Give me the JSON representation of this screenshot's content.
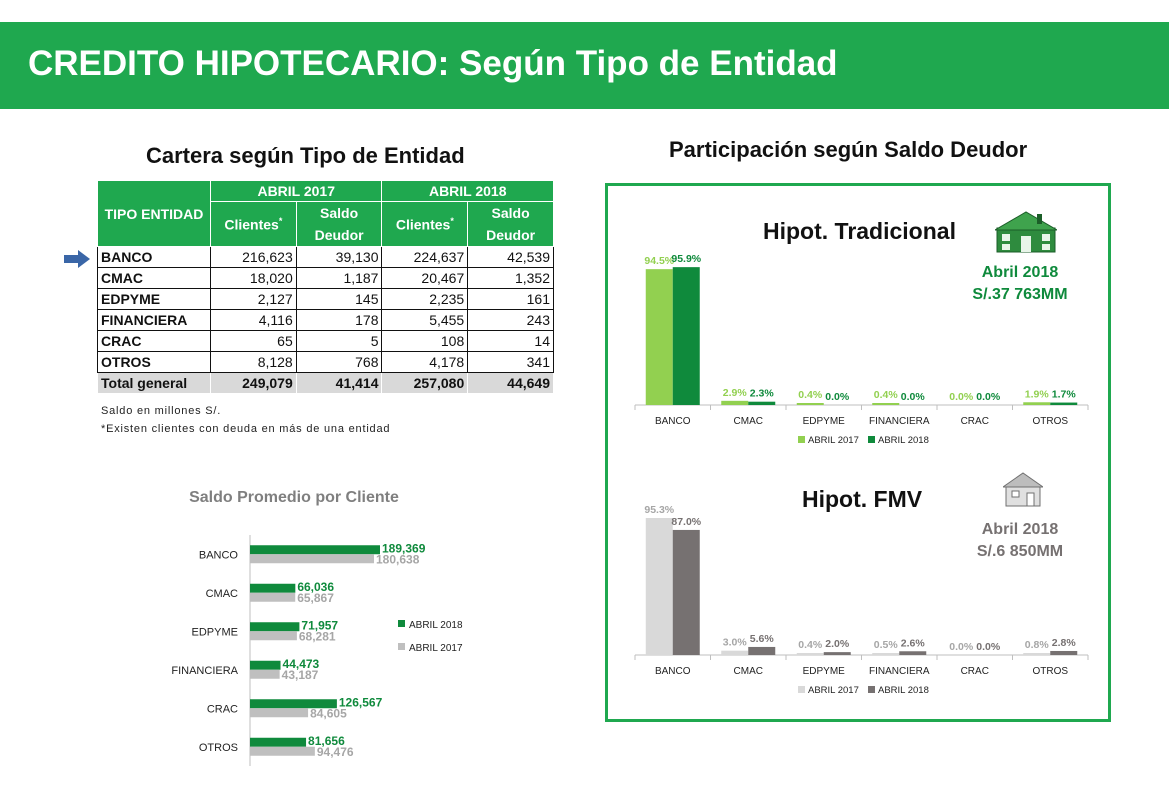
{
  "header": {
    "title": "CREDITO HIPOTECARIO: Según Tipo de Entidad"
  },
  "table": {
    "title": "Cartera según Tipo de Entidad",
    "col_tipo": "TIPO ENTIDAD",
    "col_abril2017": "ABRIL 2017",
    "col_abril2018": "ABRIL 2018",
    "col_clientes": "Clientes",
    "col_saldo": "Saldo Deudor",
    "asterisk": "*",
    "rows": [
      {
        "entidad": "BANCO",
        "c2017": "216,623",
        "s2017": "39,130",
        "c2018": "224,637",
        "s2018": "42,539"
      },
      {
        "entidad": "CMAC",
        "c2017": "18,020",
        "s2017": "1,187",
        "c2018": "20,467",
        "s2018": "1,352"
      },
      {
        "entidad": "EDPYME",
        "c2017": "2,127",
        "s2017": "145",
        "c2018": "2,235",
        "s2018": "161"
      },
      {
        "entidad": "FINANCIERA",
        "c2017": "4,116",
        "s2017": "178",
        "c2018": "5,455",
        "s2018": "243"
      },
      {
        "entidad": "CRAC",
        "c2017": "65",
        "s2017": "5",
        "c2018": "108",
        "s2018": "14"
      },
      {
        "entidad": "OTROS",
        "c2017": "8,128",
        "s2017": "768",
        "c2018": "4,178",
        "s2018": "341"
      }
    ],
    "total": {
      "entidad": "Total general",
      "c2017": "249,079",
      "s2017": "41,414",
      "c2018": "257,080",
      "s2018": "44,649"
    },
    "note1": "Saldo en millones S/.",
    "note2": "*Existen clientes con deuda en más de una entidad"
  },
  "colors": {
    "brand_green": "#1fa84f",
    "dark_green": "#0f8a3c",
    "light_green": "#92d050",
    "light_gray": "#d9d9d9",
    "mid_gray": "#bfbfbf",
    "dark_gray": "#767171"
  },
  "chart_data": [
    {
      "id": "saldo-promedio",
      "type": "bar",
      "orientation": "horizontal",
      "title": "Saldo Promedio por Cliente",
      "categories": [
        "BANCO",
        "CMAC",
        "EDPYME",
        "FINANCIERA",
        "CRAC",
        "OTROS"
      ],
      "series": [
        {
          "name": "ABRIL 2018",
          "values": [
            189369,
            66036,
            71957,
            44473,
            126567,
            81656
          ],
          "labels": [
            "189,369",
            "66,036",
            "71,957",
            "44,473",
            "126,567",
            "81,656"
          ],
          "color": "#0f8a3c"
        },
        {
          "name": "ABRIL 2017",
          "values": [
            180638,
            65867,
            68281,
            43187,
            84605,
            94476
          ],
          "labels": [
            "180,638",
            "65,867",
            "68,281",
            "43,187",
            "84,605",
            "94,476"
          ],
          "color": "#bfbfbf"
        }
      ],
      "legend": "right"
    },
    {
      "id": "hipot-tradicional",
      "type": "bar",
      "title": "Participación según Saldo Deudor",
      "subtitle": "Hipot. Tradicional",
      "info_line1": "Abril 2018",
      "info_line2": "S/.37 763MM",
      "icon": "house-icon",
      "categories": [
        "BANCO",
        "CMAC",
        "EDPYME",
        "FINANCIERA",
        "CRAC",
        "OTROS"
      ],
      "series": [
        {
          "name": "ABRIL 2017",
          "values": [
            94.5,
            2.9,
            0.4,
            0.4,
            0.0,
            1.9
          ],
          "labels": [
            "94.5%",
            "2.9%",
            "0.4%",
            "0.4%",
            "0.0%",
            "1.9%"
          ],
          "color": "#92d050"
        },
        {
          "name": "ABRIL 2018",
          "values": [
            95.9,
            2.3,
            0.0,
            0.0,
            0.0,
            1.7
          ],
          "labels": [
            "95.9%",
            "2.3%",
            "0.0%",
            "0.0%",
            "0.0%",
            "1.7%"
          ],
          "color": "#0f8a3c"
        }
      ],
      "legend": "bottom"
    },
    {
      "id": "hipot-fmv",
      "type": "bar",
      "subtitle": "Hipot. FMV",
      "info_line1": "Abril 2018",
      "info_line2": "S/.6 850MM",
      "icon": "small-house-icon",
      "categories": [
        "BANCO",
        "CMAC",
        "EDPYME",
        "FINANCIERA",
        "CRAC",
        "OTROS"
      ],
      "series": [
        {
          "name": "ABRIL 2017",
          "values": [
            95.3,
            3.0,
            0.4,
            0.5,
            0.0,
            0.8
          ],
          "labels": [
            "95.3%",
            "3.0%",
            "0.4%",
            "0.5%",
            "0.0%",
            "0.8%"
          ],
          "color": "#d9d9d9"
        },
        {
          "name": "ABRIL 2018",
          "values": [
            87.0,
            5.6,
            2.0,
            2.6,
            0.0,
            2.8
          ],
          "labels": [
            "87.0%",
            "5.6%",
            "2.0%",
            "2.6%",
            "0.0%",
            "2.8%"
          ],
          "color": "#767171"
        }
      ],
      "legend": "bottom"
    }
  ]
}
